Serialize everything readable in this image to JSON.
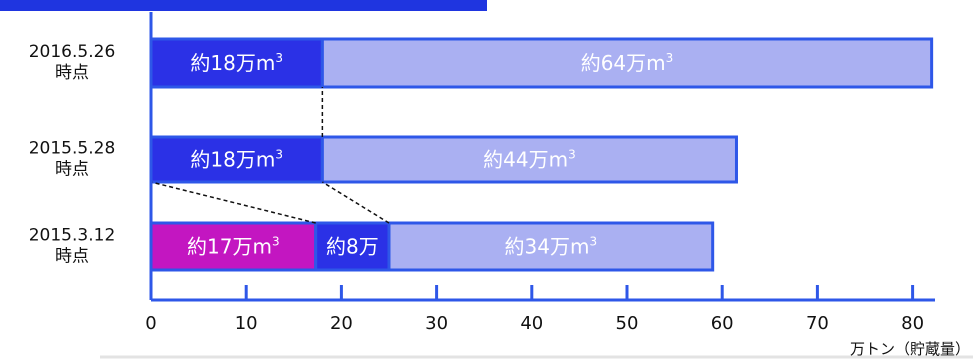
{
  "colors": {
    "axis": "#2e57e8",
    "dark_blue": "#2b31e6",
    "light_blue": "#aab0f2",
    "magenta": "#c316c1",
    "header_band": "#1f35e0",
    "bottom_line": "#e3e3e3"
  },
  "chart_data": {
    "type": "bar",
    "orientation": "horizontal",
    "stacked": true,
    "categories": [
      "2016.5.26 時点",
      "2015.5.28 時点",
      "2015.3.12 時点"
    ],
    "rows": [
      {
        "category_lines": [
          "2016.5.26",
          "時点"
        ],
        "segments": [
          {
            "value": 18,
            "label": "約18万m",
            "sup": "3",
            "color": "#2b31e6"
          },
          {
            "value": 64,
            "label": "約64万m",
            "sup": "3",
            "color": "#aab0f2"
          }
        ]
      },
      {
        "category_lines": [
          "2015.5.28",
          "時点"
        ],
        "segments": [
          {
            "value": 18,
            "label": "約18万m",
            "sup": "3",
            "color": "#2b31e6"
          },
          {
            "value": 43.5,
            "label": "約44万m",
            "sup": "3",
            "color": "#aab0f2"
          }
        ]
      },
      {
        "category_lines": [
          "2015.3.12",
          "時点"
        ],
        "segments": [
          {
            "value": 17.3,
            "label": "約17万m",
            "sup": "3",
            "color": "#c316c1"
          },
          {
            "value": 7.7,
            "label": "約8万",
            "sup": "",
            "color": "#2b31e6"
          },
          {
            "value": 34,
            "label": "約34万m",
            "sup": "3",
            "color": "#aab0f2"
          }
        ]
      }
    ],
    "xlim": [
      0,
      82
    ],
    "xticks": [
      0,
      10,
      20,
      30,
      40,
      50,
      60,
      70,
      80
    ],
    "xlabel": "万トン（貯蔵量）",
    "connectors": [
      {
        "from_row": 1,
        "from_value": 18,
        "to_row": 0,
        "to_value": 18
      },
      {
        "from_row": 2,
        "from_value": 0,
        "to_row": 1,
        "to_value": 0
      },
      {
        "from_row": 2,
        "from_value": 17.3,
        "to_row": 1,
        "to_value": 0
      },
      {
        "from_row": 2,
        "from_value": 25,
        "to_row": 1,
        "to_value": 18
      }
    ],
    "grid": false,
    "legend": "none"
  }
}
